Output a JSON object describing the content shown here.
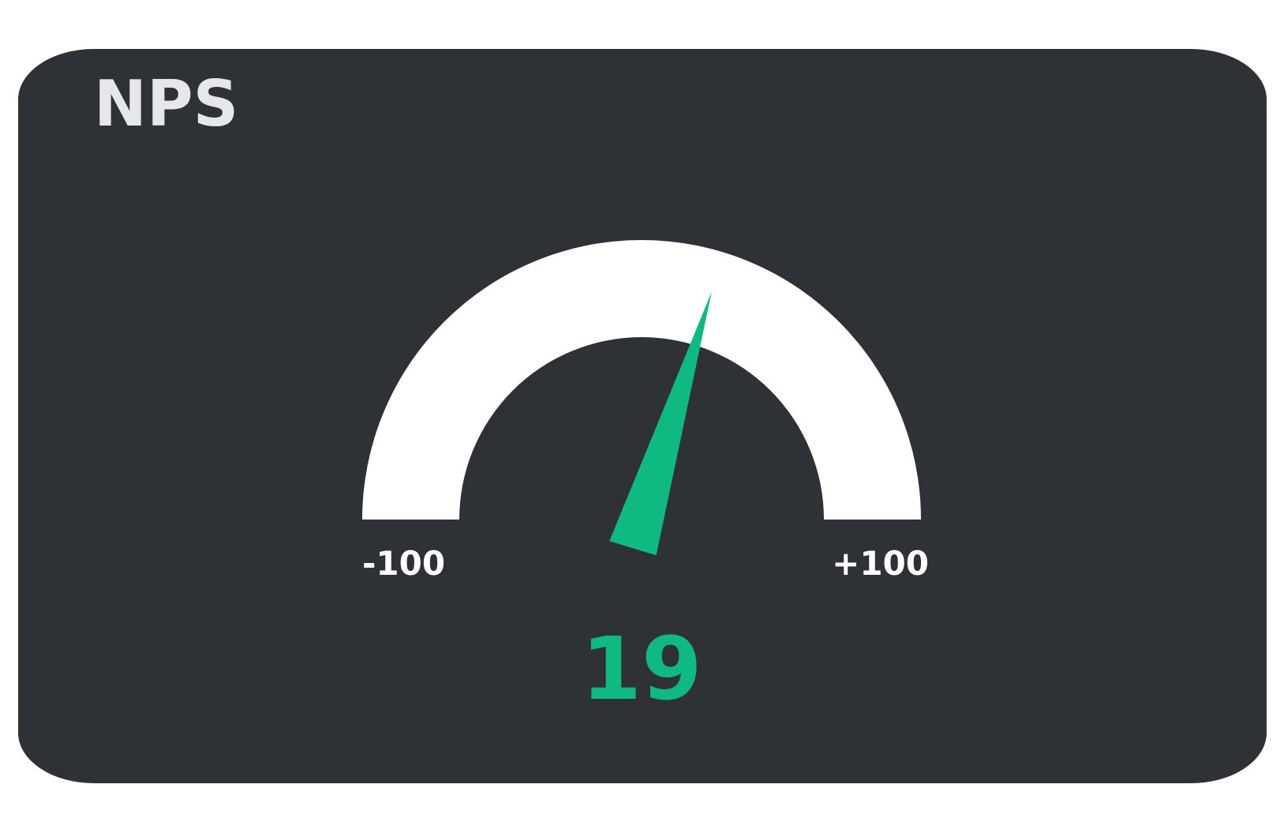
{
  "title": "NPS",
  "chart_data": {
    "type": "gauge",
    "title": "NPS",
    "value": 19,
    "value_label": "19",
    "min": -100,
    "max": 100,
    "min_label": "-100",
    "max_label": "+100"
  },
  "colors": {
    "card_background": "#2e3236",
    "title": "#e6e7eb",
    "arc": "#ffffff",
    "needle": "#10b981",
    "value": "#10b981",
    "tick_labels": "#ffffff"
  }
}
